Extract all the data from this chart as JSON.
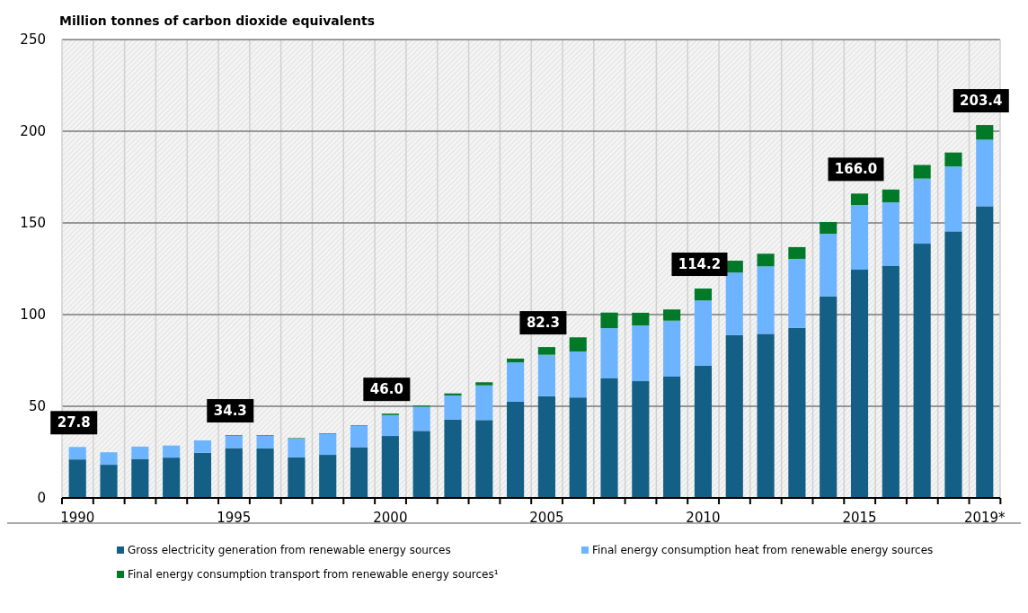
{
  "chart_data": {
    "type": "bar",
    "stacked": true,
    "ylabel": "Million tonnes of carbon dioxide equivalents",
    "categories": [
      "1990",
      null,
      null,
      null,
      null,
      "1995",
      null,
      null,
      null,
      null,
      "2000",
      null,
      null,
      null,
      null,
      "2005",
      null,
      null,
      null,
      null,
      "2010",
      null,
      null,
      null,
      null,
      "2015",
      null,
      null,
      null,
      "2019*"
    ],
    "series": [
      {
        "name": "Gross electricity generation from renewable energy sources",
        "color": "#145f86",
        "values": [
          21.0,
          18.1,
          21.3,
          22.0,
          24.6,
          27.2,
          27.0,
          22.1,
          23.5,
          27.7,
          33.8,
          36.6,
          42.8,
          42.5,
          52.5,
          55.5,
          54.8,
          65.2,
          63.7,
          66.2,
          72.2,
          88.8,
          89.5,
          92.8,
          109.9,
          124.5,
          126.7,
          138.7,
          145.4,
          159.1
        ]
      },
      {
        "name": "Final energy consumption heat from renewable energy sources",
        "color": "#6cb4ff",
        "values": [
          6.8,
          6.8,
          6.7,
          6.6,
          6.8,
          6.8,
          7.0,
          10.2,
          11.4,
          11.6,
          11.4,
          13.2,
          13.1,
          18.9,
          21.4,
          22.6,
          25.1,
          27.4,
          30.4,
          30.5,
          35.5,
          34.1,
          36.8,
          37.6,
          34.2,
          35.3,
          34.5,
          35.5,
          35.4,
          36.3
        ]
      },
      {
        "name": "Final energy consumption transport from renewable energy sources¹",
        "color": "#007a28",
        "values": [
          null,
          null,
          null,
          null,
          null,
          0.3,
          0.3,
          0.3,
          0.3,
          0.3,
          0.8,
          0.6,
          1.1,
          1.7,
          2.1,
          4.2,
          7.7,
          8.5,
          6.9,
          6.1,
          6.5,
          6.5,
          6.9,
          6.4,
          6.4,
          6.2,
          7.0,
          7.4,
          7.6,
          8.0
        ]
      }
    ],
    "totals": [
      "27.8",
      null,
      null,
      null,
      null,
      "34.3",
      null,
      null,
      null,
      null,
      "46.0",
      null,
      null,
      null,
      null,
      "82.3",
      null,
      null,
      null,
      null,
      "114.2",
      null,
      null,
      null,
      null,
      "166.0",
      null,
      null,
      null,
      "203.4"
    ],
    "ylim": [
      0,
      250
    ],
    "yticks": [
      0,
      50,
      100,
      150,
      200,
      250
    ],
    "grid": true,
    "legend": "bottom"
  }
}
